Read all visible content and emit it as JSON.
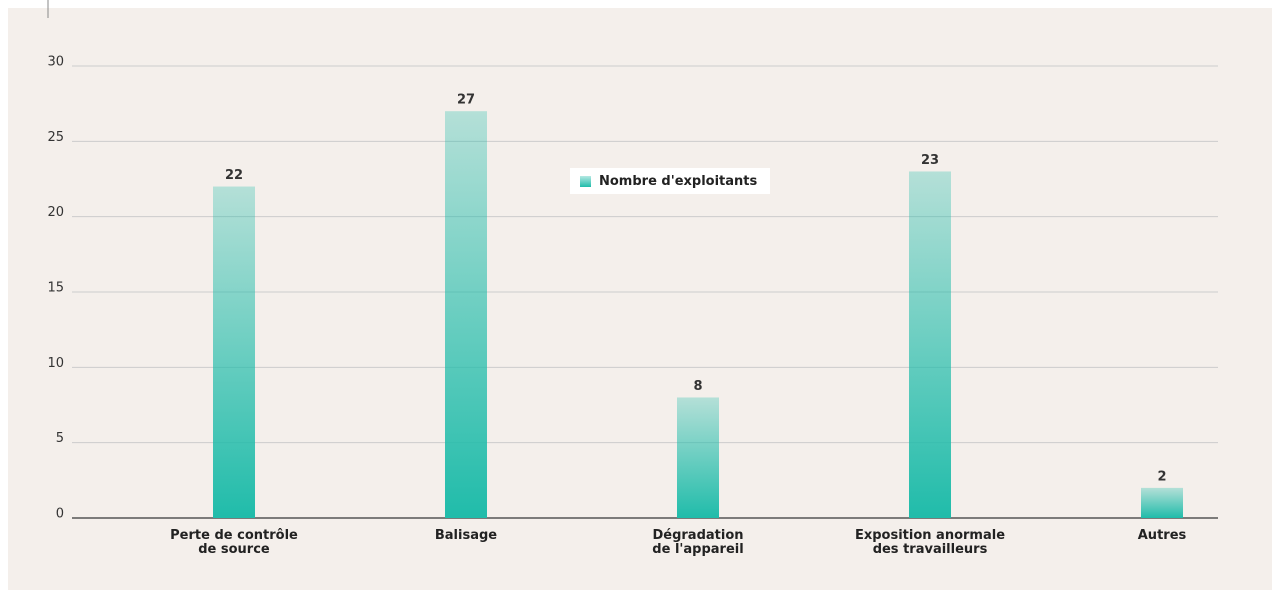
{
  "chart_data": {
    "type": "bar",
    "categories": [
      "Perte de contrôle\nde source",
      "Balisage",
      "Dégradation\nde l'appareil",
      "Exposition anormale\ndes travailleurs",
      "Autres"
    ],
    "series": [
      {
        "name": "Nombre d'exploitants",
        "color": "#20bcaa",
        "values": [
          22,
          27,
          8,
          23,
          2
        ]
      }
    ],
    "ylim": [
      0,
      30
    ],
    "yticks": [
      0,
      5,
      10,
      15,
      20,
      25,
      30
    ],
    "grid": true,
    "legend": "top"
  }
}
